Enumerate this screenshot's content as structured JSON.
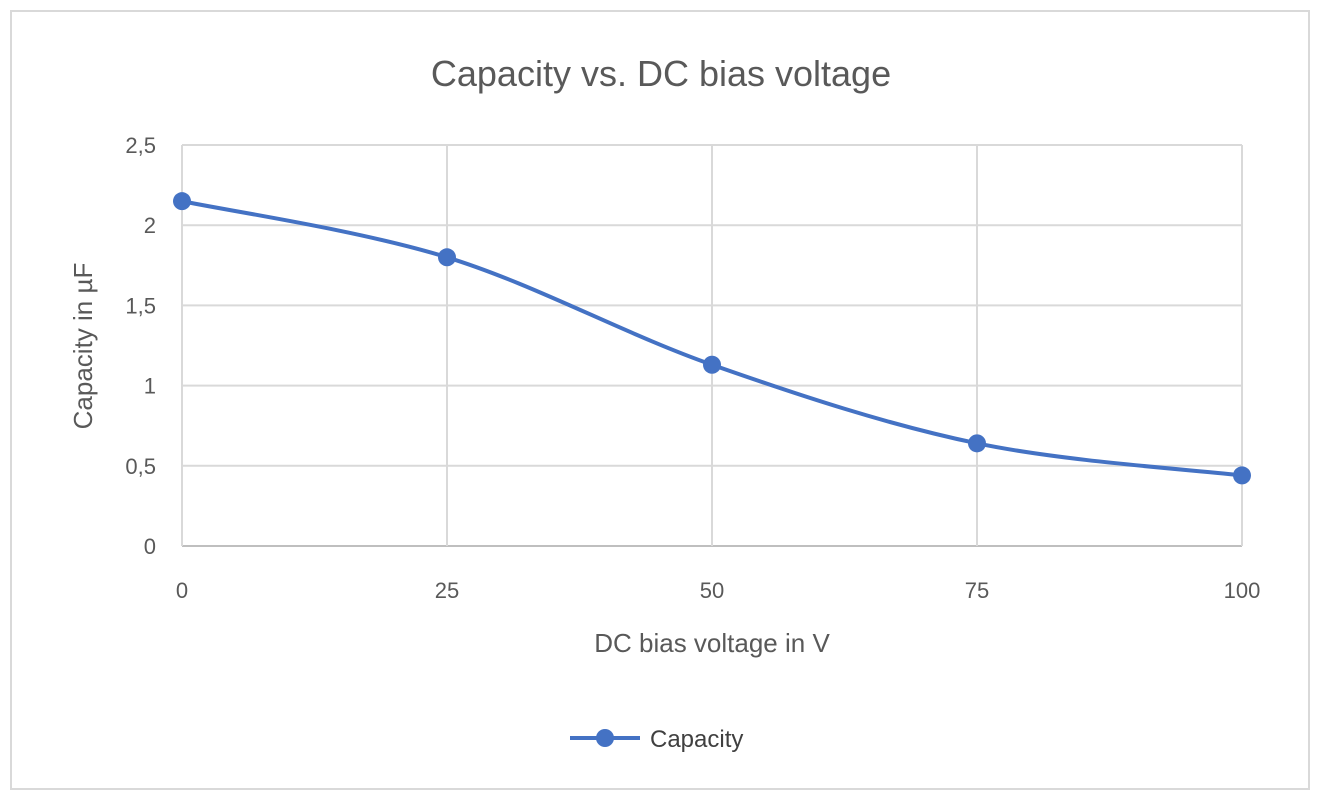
{
  "chart_data": {
    "type": "line",
    "title": "Capacity vs. DC bias voltage",
    "xlabel": "DC bias voltage in V",
    "ylabel": "Capacity in µF",
    "x": [
      0,
      25,
      50,
      75,
      100
    ],
    "x_tick_labels": [
      "0",
      "25",
      "50",
      "75",
      "100"
    ],
    "y_tick_labels": [
      "0",
      "0,5",
      "1",
      "1,5",
      "2",
      "2,5"
    ],
    "xlim": [
      0,
      100
    ],
    "ylim": [
      0,
      2.5
    ],
    "grid": true,
    "smooth": true,
    "legend_position": "bottom",
    "series": [
      {
        "name": "Capacity",
        "color": "#4472c4",
        "marker": "circle",
        "values": [
          2.15,
          1.8,
          1.13,
          0.64,
          0.44
        ]
      }
    ]
  }
}
